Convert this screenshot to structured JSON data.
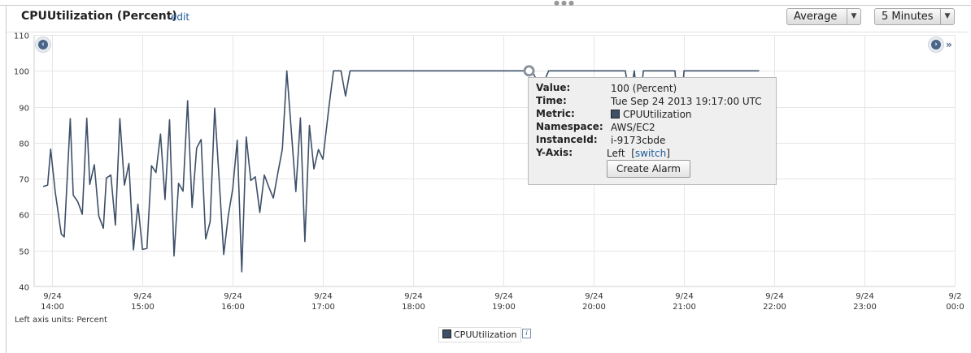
{
  "widget": {
    "title": "CPUUtilization (Percent)",
    "edit_label": "edit",
    "statistic": "Average",
    "period": "5 Minutes",
    "units_note": "Left axis units: Percent",
    "legend_label": "CPUUtilization",
    "legend_info_label": "i"
  },
  "tooltip": {
    "value_label": "Value:",
    "value": "100 (Percent)",
    "time_label": "Time:",
    "time": "Tue Sep 24 2013 19:17:00 UTC",
    "metric_label": "Metric:",
    "metric": "CPUUtilization",
    "namespace_label": "Namespace:",
    "namespace": "AWS/EC2",
    "instance_label": "InstanceId:",
    "instance": "i-9173cbde",
    "yaxis_label": "Y-Axis:",
    "yaxis": "Left",
    "switch_label": "switch",
    "create_alarm_label": "Create Alarm"
  },
  "colors": {
    "series": "#3e5068",
    "link": "#1a5a9a",
    "grid": "#e6e6e6"
  },
  "chart_data": {
    "type": "line",
    "ylim": [
      40,
      110
    ],
    "y_ticks": [
      110,
      100,
      90,
      80,
      70,
      60,
      50,
      40
    ],
    "x_start_minutes": 828,
    "x_end_minutes": 1440,
    "x_ticks": [
      {
        "minutes": 840,
        "date": "9/24",
        "time": "14:00"
      },
      {
        "minutes": 900,
        "date": "9/24",
        "time": "15:00"
      },
      {
        "minutes": 960,
        "date": "9/24",
        "time": "16:00"
      },
      {
        "minutes": 1020,
        "date": "9/24",
        "time": "17:00"
      },
      {
        "minutes": 1080,
        "date": "9/24",
        "time": "18:00"
      },
      {
        "minutes": 1140,
        "date": "9/24",
        "time": "19:00"
      },
      {
        "minutes": 1200,
        "date": "9/24",
        "time": "20:00"
      },
      {
        "minutes": 1260,
        "date": "9/24",
        "time": "21:00"
      },
      {
        "minutes": 1320,
        "date": "9/24",
        "time": "22:00"
      },
      {
        "minutes": 1380,
        "date": "9/24",
        "time": "23:00"
      },
      {
        "minutes": 1440,
        "date": "9/2",
        "time": "00:0"
      }
    ],
    "highlight": {
      "minutes": 1157,
      "value": 100
    },
    "series": [
      {
        "name": "CPUUtilization",
        "points": [
          [
            834,
            67.8
          ],
          [
            837,
            68.2
          ],
          [
            839,
            78.2
          ],
          [
            842,
            66.3
          ],
          [
            846,
            54.6
          ],
          [
            848,
            53.8
          ],
          [
            852,
            86.7
          ],
          [
            854,
            65.4
          ],
          [
            857,
            63.6
          ],
          [
            860,
            60.1
          ],
          [
            863,
            86.8
          ],
          [
            865,
            68.4
          ],
          [
            868,
            73.9
          ],
          [
            871,
            59.6
          ],
          [
            874,
            56.2
          ],
          [
            876,
            70.2
          ],
          [
            879,
            71.0
          ],
          [
            882,
            57.1
          ],
          [
            885,
            86.7
          ],
          [
            888,
            68.2
          ],
          [
            891,
            74.2
          ],
          [
            894,
            50.2
          ],
          [
            897,
            62.9
          ],
          [
            900,
            50.3
          ],
          [
            903,
            50.6
          ],
          [
            906,
            73.6
          ],
          [
            909,
            71.7
          ],
          [
            912,
            82.4
          ],
          [
            915,
            64.2
          ],
          [
            918,
            86.4
          ],
          [
            921,
            48.5
          ],
          [
            924,
            68.7
          ],
          [
            927,
            66.5
          ],
          [
            930,
            91.7
          ],
          [
            933,
            62.0
          ],
          [
            936,
            78.5
          ],
          [
            939,
            80.9
          ],
          [
            942,
            53.2
          ],
          [
            945,
            58.0
          ],
          [
            948,
            89.6
          ],
          [
            951,
            69.7
          ],
          [
            954,
            48.9
          ],
          [
            957,
            59.5
          ],
          [
            960,
            67.2
          ],
          [
            963,
            80.7
          ],
          [
            966,
            44.1
          ],
          [
            969,
            81.6
          ],
          [
            972,
            69.5
          ],
          [
            975,
            70.5
          ],
          [
            978,
            60.6
          ],
          [
            981,
            71.0
          ],
          [
            984,
            67.7
          ],
          [
            987,
            64.6
          ],
          [
            990,
            71.5
          ],
          [
            993,
            78.2
          ],
          [
            996,
            100
          ],
          [
            1002,
            66.4
          ],
          [
            1005,
            86.9
          ],
          [
            1008,
            52.5
          ],
          [
            1011,
            84.8
          ],
          [
            1014,
            72.7
          ],
          [
            1017,
            78.1
          ],
          [
            1020,
            75.4
          ],
          [
            1024,
            90.0
          ],
          [
            1027,
            100
          ],
          [
            1032,
            100
          ],
          [
            1035,
            93.0
          ],
          [
            1038,
            100
          ],
          [
            1159,
            100
          ],
          [
            1165,
            95.0
          ],
          [
            1170,
            100
          ],
          [
            1221,
            100
          ],
          [
            1224,
            92.5
          ],
          [
            1227,
            100
          ],
          [
            1230,
            87.3
          ],
          [
            1233,
            100
          ],
          [
            1254,
            100
          ],
          [
            1257,
            83.3
          ],
          [
            1260,
            100
          ],
          [
            1310,
            100
          ]
        ]
      }
    ]
  }
}
